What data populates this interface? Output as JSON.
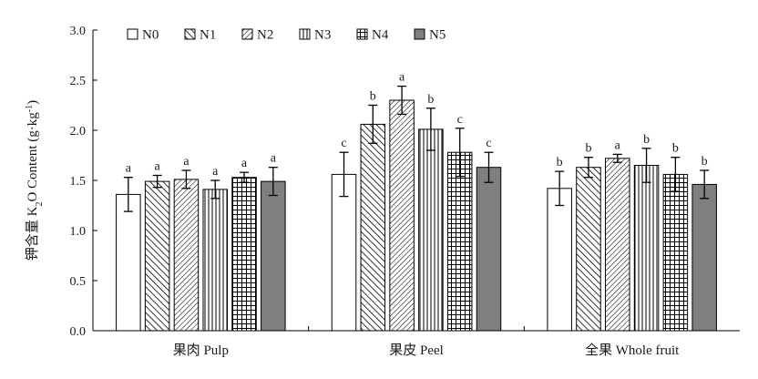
{
  "chart_data": {
    "type": "bar",
    "title": "",
    "xlabel": "",
    "ylabel": {
      "prefix": "钾含量 K",
      "sub": "2",
      "middle": "O Content (g·kg",
      "sup": "-1",
      "suffix": ")"
    },
    "ylim": [
      0,
      3.0
    ],
    "yticks": [
      "0.0",
      "0.5",
      "1.0",
      "1.5",
      "2.0",
      "2.5",
      "3.0"
    ],
    "grid": false,
    "legend_position": "top-left",
    "categories": [
      "果肉 Pulp",
      "果皮 Peel",
      "全果 Whole fruit"
    ],
    "series": [
      {
        "name": "N0",
        "pattern": "none",
        "values": [
          1.36,
          1.56,
          1.42
        ],
        "errors": [
          0.17,
          0.22,
          0.17
        ],
        "letters": [
          "a",
          "c",
          "b"
        ]
      },
      {
        "name": "N1",
        "pattern": "back",
        "values": [
          1.49,
          2.06,
          1.63
        ],
        "errors": [
          0.06,
          0.19,
          0.1
        ],
        "letters": [
          "a",
          "b",
          "b"
        ]
      },
      {
        "name": "N2",
        "pattern": "fwd",
        "values": [
          1.51,
          2.3,
          1.72
        ],
        "errors": [
          0.09,
          0.14,
          0.04
        ],
        "letters": [
          "a",
          "a",
          "a"
        ]
      },
      {
        "name": "N3",
        "pattern": "vert",
        "values": [
          1.41,
          2.01,
          1.65
        ],
        "errors": [
          0.09,
          0.21,
          0.17
        ],
        "letters": [
          "a",
          "b",
          "b"
        ]
      },
      {
        "name": "N4",
        "pattern": "grid",
        "values": [
          1.53,
          1.78,
          1.56
        ],
        "errors": [
          0.05,
          0.24,
          0.17
        ],
        "letters": [
          "a",
          "c",
          "b"
        ]
      },
      {
        "name": "N5",
        "pattern": "solid",
        "values": [
          1.49,
          1.63,
          1.46
        ],
        "errors": [
          0.14,
          0.15,
          0.14
        ],
        "letters": [
          "a",
          "c",
          "b"
        ]
      }
    ]
  },
  "colors": {
    "solid_fill": "#7f7f7f",
    "stroke": "#000000",
    "background": "#ffffff"
  }
}
